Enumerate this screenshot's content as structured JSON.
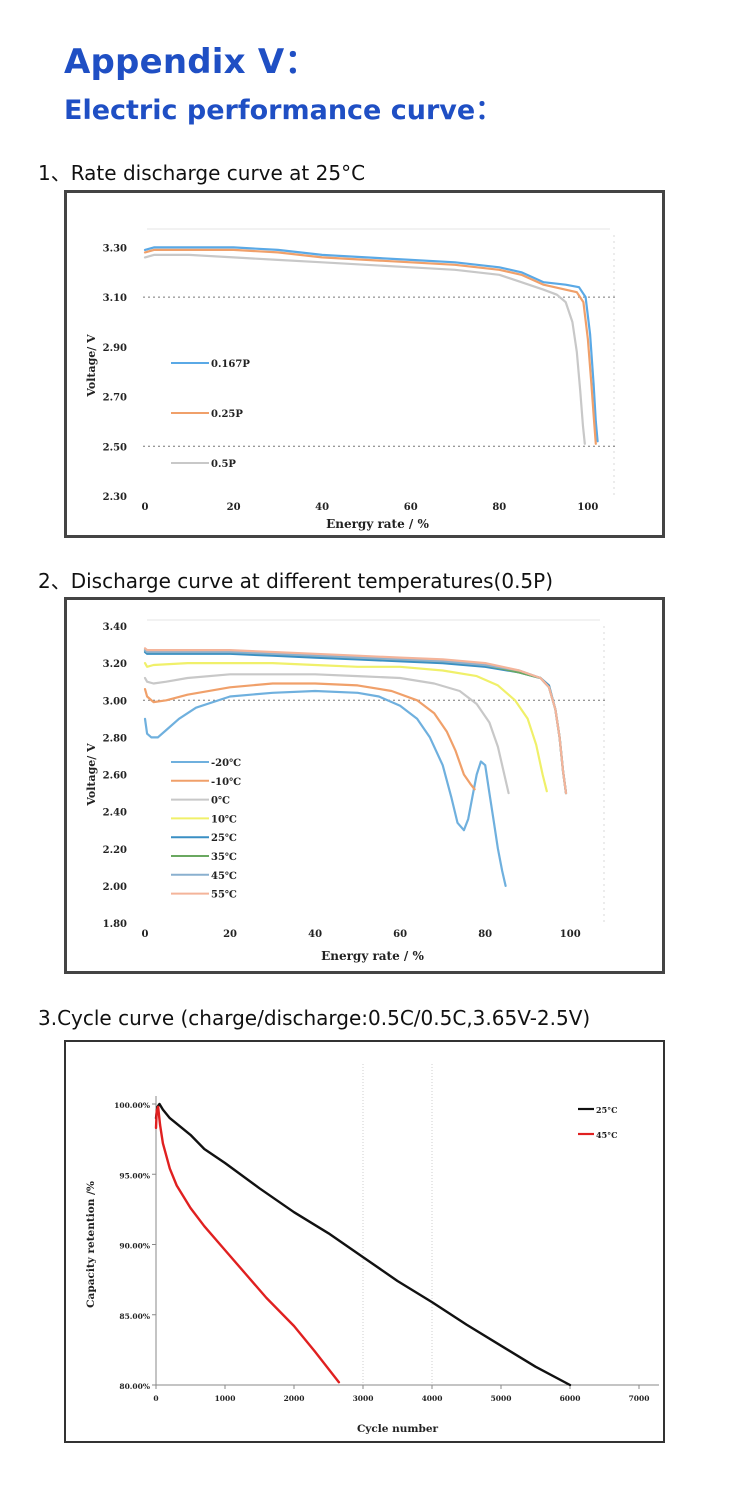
{
  "page": {
    "title": "Appendix V：",
    "subtitle": "Electric performance curve：",
    "sections": [
      "1、Rate discharge curve at 25°C",
      "2、Discharge curve at different temperatures(0.5P)",
      "3.Cycle curve (charge/discharge:0.5C/0.5C,3.65V-2.5V)"
    ]
  },
  "chart_data": [
    {
      "type": "line",
      "title": "",
      "xlabel": "Energy rate / %",
      "ylabel": "Voltage/ V",
      "xlim": [
        0,
        105
      ],
      "ylim": [
        2.3,
        3.35
      ],
      "xticks": [
        0,
        20,
        40,
        60,
        80,
        100
      ],
      "xtick_labels": [
        "0",
        "20",
        "40",
        "60",
        "80",
        "100"
      ],
      "yticks": [
        2.3,
        2.5,
        2.7,
        2.9,
        3.1,
        3.3
      ],
      "ytick_labels": [
        "2.30",
        "2.50",
        "2.70",
        "2.90",
        "3.10",
        "3.30"
      ],
      "legend_position": "left",
      "series": [
        {
          "name": "0.167P",
          "color": "#5aa9e6",
          "x": [
            0,
            2,
            10,
            20,
            30,
            40,
            50,
            60,
            70,
            80,
            85,
            90,
            95,
            98,
            99.5,
            100.5,
            101.3,
            101.8,
            102.2
          ],
          "y": [
            3.29,
            3.3,
            3.3,
            3.3,
            3.29,
            3.27,
            3.26,
            3.25,
            3.24,
            3.22,
            3.2,
            3.16,
            3.15,
            3.14,
            3.1,
            2.95,
            2.75,
            2.6,
            2.52
          ]
        },
        {
          "name": "0.25P",
          "color": "#f0a06a",
          "x": [
            0,
            2,
            10,
            20,
            30,
            40,
            50,
            60,
            70,
            80,
            85,
            90,
            95,
            97.5,
            99,
            100,
            100.8,
            101.4,
            101.8
          ],
          "y": [
            3.28,
            3.29,
            3.29,
            3.29,
            3.28,
            3.26,
            3.25,
            3.24,
            3.23,
            3.21,
            3.19,
            3.15,
            3.13,
            3.12,
            3.08,
            2.93,
            2.75,
            2.6,
            2.51
          ]
        },
        {
          "name": "0.5P",
          "color": "#c8c8c8",
          "x": [
            0,
            2,
            10,
            20,
            30,
            40,
            50,
            60,
            70,
            80,
            85,
            90,
            93,
            95,
            96.5,
            97.5,
            98.3,
            98.9,
            99.3
          ],
          "y": [
            3.26,
            3.27,
            3.27,
            3.26,
            3.25,
            3.24,
            3.23,
            3.22,
            3.21,
            3.19,
            3.16,
            3.13,
            3.11,
            3.08,
            3.0,
            2.88,
            2.72,
            2.58,
            2.51
          ]
        }
      ]
    },
    {
      "type": "line",
      "title": "",
      "xlabel": "Energy rate / %",
      "ylabel": "Voltage/ V",
      "xlim": [
        0,
        107
      ],
      "ylim": [
        1.8,
        3.4
      ],
      "xticks": [
        0,
        20,
        40,
        60,
        80,
        100
      ],
      "xtick_labels": [
        "0",
        "20",
        "40",
        "60",
        "80",
        "100"
      ],
      "yticks": [
        1.8,
        2.0,
        2.2,
        2.4,
        2.6,
        2.8,
        3.0,
        3.2,
        3.4
      ],
      "ytick_labels": [
        "1.80",
        "2.00",
        "2.20",
        "2.40",
        "2.60",
        "2.80",
        "3.00",
        "3.20",
        "3.40"
      ],
      "legend_position": "left",
      "series": [
        {
          "name": "-20℃",
          "color": "#6fb0de",
          "x": [
            0,
            0.5,
            1.5,
            3,
            5,
            8,
            12,
            20,
            30,
            40,
            50,
            55,
            60,
            64,
            67,
            70,
            72,
            73.5,
            75,
            76,
            77,
            78,
            79,
            80,
            81,
            82,
            83,
            84,
            84.8
          ],
          "y": [
            2.9,
            2.82,
            2.8,
            2.8,
            2.84,
            2.9,
            2.96,
            3.02,
            3.04,
            3.05,
            3.04,
            3.02,
            2.97,
            2.9,
            2.8,
            2.65,
            2.48,
            2.34,
            2.3,
            2.36,
            2.48,
            2.6,
            2.67,
            2.65,
            2.5,
            2.35,
            2.2,
            2.08,
            2.0
          ]
        },
        {
          "name": "-10℃",
          "color": "#f0a06a",
          "x": [
            0,
            0.5,
            2,
            5,
            10,
            20,
            30,
            40,
            50,
            58,
            64,
            68,
            71,
            73,
            75,
            76.5,
            77.5
          ],
          "y": [
            3.06,
            3.02,
            2.99,
            3.0,
            3.03,
            3.07,
            3.09,
            3.09,
            3.08,
            3.05,
            3.0,
            2.93,
            2.83,
            2.73,
            2.6,
            2.55,
            2.52
          ]
        },
        {
          "name": "0℃",
          "color": "#c8c8c8",
          "x": [
            0,
            0.5,
            2,
            5,
            10,
            20,
            30,
            40,
            50,
            60,
            68,
            74,
            78,
            81,
            83,
            84.5,
            85.5
          ],
          "y": [
            3.12,
            3.1,
            3.09,
            3.1,
            3.12,
            3.14,
            3.14,
            3.14,
            3.13,
            3.12,
            3.09,
            3.05,
            2.98,
            2.88,
            2.75,
            2.6,
            2.5
          ]
        },
        {
          "name": "10℃",
          "color": "#f0f06a",
          "x": [
            0,
            0.5,
            2,
            10,
            20,
            30,
            40,
            50,
            60,
            70,
            78,
            83,
            87,
            90,
            92,
            93.5,
            94.5
          ],
          "y": [
            3.2,
            3.18,
            3.19,
            3.2,
            3.2,
            3.2,
            3.19,
            3.18,
            3.18,
            3.16,
            3.13,
            3.08,
            3.0,
            2.9,
            2.76,
            2.6,
            2.51
          ]
        },
        {
          "name": "25℃",
          "color": "#3a8fc4",
          "x": [
            0,
            0.5,
            3,
            10,
            20,
            30,
            40,
            50,
            60,
            70,
            80,
            88,
            93,
            95,
            96.5,
            97.5,
            98.3,
            99
          ],
          "y": [
            3.26,
            3.25,
            3.25,
            3.25,
            3.25,
            3.24,
            3.23,
            3.22,
            3.21,
            3.2,
            3.18,
            3.15,
            3.12,
            3.08,
            2.95,
            2.8,
            2.62,
            2.5
          ]
        },
        {
          "name": "35℃",
          "color": "#6aa860",
          "x": [
            0,
            0.5,
            3,
            10,
            20,
            30,
            40,
            50,
            60,
            70,
            80,
            88,
            93,
            95,
            96.5,
            97.5,
            98.3,
            99
          ],
          "y": [
            3.27,
            3.26,
            3.26,
            3.26,
            3.26,
            3.25,
            3.24,
            3.23,
            3.22,
            3.21,
            3.19,
            3.15,
            3.12,
            3.07,
            2.95,
            2.8,
            2.62,
            2.5
          ]
        },
        {
          "name": "45℃",
          "color": "#8ab0cf",
          "x": [
            0,
            0.5,
            3,
            10,
            20,
            30,
            40,
            50,
            60,
            70,
            80,
            88,
            93,
            95,
            96.5,
            97.5,
            98.3,
            99
          ],
          "y": [
            3.27,
            3.26,
            3.26,
            3.26,
            3.26,
            3.25,
            3.24,
            3.23,
            3.22,
            3.21,
            3.19,
            3.16,
            3.12,
            3.07,
            2.95,
            2.8,
            2.62,
            2.5
          ]
        },
        {
          "name": "55℃",
          "color": "#f4b49a",
          "x": [
            0,
            0.5,
            3,
            10,
            20,
            30,
            40,
            50,
            60,
            70,
            80,
            88,
            93,
            95,
            96.5,
            97.5,
            98.3,
            99
          ],
          "y": [
            3.28,
            3.27,
            3.27,
            3.27,
            3.27,
            3.26,
            3.25,
            3.24,
            3.23,
            3.22,
            3.2,
            3.16,
            3.12,
            3.07,
            2.95,
            2.8,
            2.62,
            2.5
          ]
        }
      ]
    },
    {
      "type": "line",
      "title": "",
      "xlabel": "Cycle number",
      "ylabel": "Capacity retention /%",
      "xlim": [
        0,
        7000
      ],
      "ylim": [
        80,
        100
      ],
      "xticks": [
        0,
        1000,
        2000,
        3000,
        4000,
        5000,
        6000,
        7000
      ],
      "xtick_labels": [
        "0",
        "1000",
        "2000",
        "3000",
        "4000",
        "5000",
        "6000",
        "7000"
      ],
      "yticks": [
        80,
        85,
        90,
        95,
        100
      ],
      "ytick_labels": [
        "80.00%",
        "85.00%",
        "90.00%",
        "95.00%",
        "100.00%"
      ],
      "legend_position": "top-right",
      "series": [
        {
          "name": "25°C",
          "color": "#111111",
          "x": [
            0,
            20,
            50,
            100,
            200,
            300,
            500,
            700,
            1000,
            1500,
            2000,
            2500,
            3000,
            3500,
            4000,
            4500,
            5000,
            5500,
            6000
          ],
          "y": [
            99.0,
            99.8,
            100.0,
            99.6,
            99.0,
            98.6,
            97.8,
            96.8,
            95.8,
            94.0,
            92.3,
            90.8,
            89.1,
            87.4,
            85.9,
            84.3,
            82.8,
            81.3,
            80.0
          ]
        },
        {
          "name": "45°C",
          "color": "#e02020",
          "x": [
            0,
            10,
            30,
            60,
            100,
            200,
            300,
            500,
            700,
            1000,
            1300,
            1600,
            2000,
            2300,
            2650
          ],
          "y": [
            98.3,
            99.5,
            99.8,
            98.5,
            97.2,
            95.4,
            94.2,
            92.6,
            91.3,
            89.6,
            87.9,
            86.2,
            84.2,
            82.4,
            80.2
          ]
        }
      ]
    }
  ]
}
